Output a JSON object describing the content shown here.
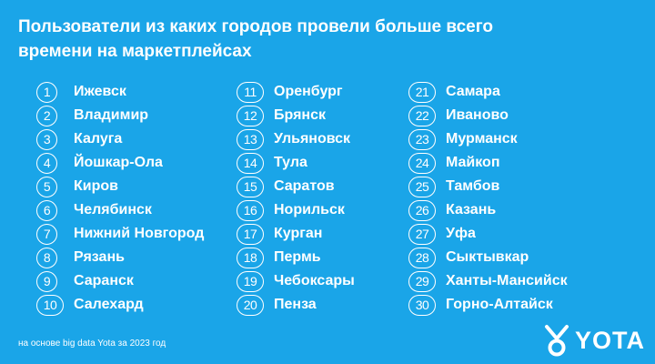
{
  "title": "Пользователи из каких городов провели больше всего времени на маркетплейсах",
  "columns": [
    [
      {
        "rank": "1",
        "city": "Ижевск"
      },
      {
        "rank": "2",
        "city": "Владимир"
      },
      {
        "rank": "3",
        "city": "Калуга"
      },
      {
        "rank": "4",
        "city": "Йошкар-Ола"
      },
      {
        "rank": "5",
        "city": "Киров"
      },
      {
        "rank": "6",
        "city": "Челябинск"
      },
      {
        "rank": "7",
        "city": "Нижний Новгород"
      },
      {
        "rank": "8",
        "city": "Рязань"
      },
      {
        "rank": "9",
        "city": "Саранск"
      },
      {
        "rank": "10",
        "city": "Салехард"
      }
    ],
    [
      {
        "rank": "11",
        "city": "Оренбург"
      },
      {
        "rank": "12",
        "city": "Брянск"
      },
      {
        "rank": "13",
        "city": "Ульяновск"
      },
      {
        "rank": "14",
        "city": "Тула"
      },
      {
        "rank": "15",
        "city": "Саратов"
      },
      {
        "rank": "16",
        "city": "Норильск"
      },
      {
        "rank": "17",
        "city": "Курган"
      },
      {
        "rank": "18",
        "city": "Пермь"
      },
      {
        "rank": "19",
        "city": "Чебоксары"
      },
      {
        "rank": "20",
        "city": "Пенза"
      }
    ],
    [
      {
        "rank": "21",
        "city": "Самара"
      },
      {
        "rank": "22",
        "city": "Иваново"
      },
      {
        "rank": "23",
        "city": "Мурманск"
      },
      {
        "rank": "24",
        "city": "Майкоп"
      },
      {
        "rank": "25",
        "city": "Тамбов"
      },
      {
        "rank": "26",
        "city": "Казань"
      },
      {
        "rank": "27",
        "city": "Уфа"
      },
      {
        "rank": "28",
        "city": "Сыктывкар"
      },
      {
        "rank": "29",
        "city": "Ханты-Мансийск"
      },
      {
        "rank": "30",
        "city": "Горно-Алтайск"
      }
    ]
  ],
  "footnote": "на основе big data Yota за 2023 год",
  "logo": {
    "text": "YOTA",
    "icon": "yota-logo-icon"
  },
  "colors": {
    "background": "#1aa5e8",
    "text": "#ffffff"
  }
}
